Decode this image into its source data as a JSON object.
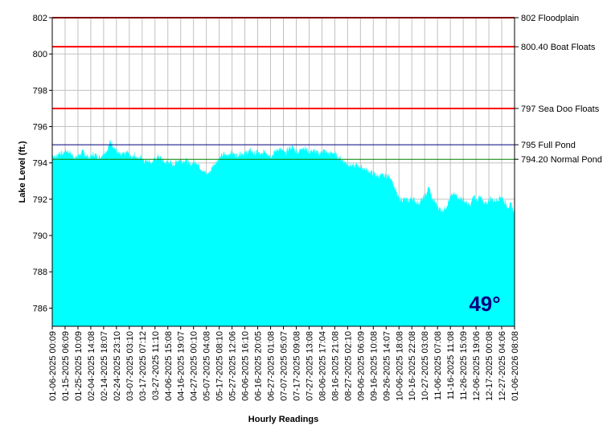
{
  "chart_data": {
    "type": "area",
    "xlabel": "Hourly Readings",
    "ylabel": "Lake Level (ft.)",
    "ylim": [
      785,
      802
    ],
    "yticks": [
      786,
      788,
      790,
      792,
      794,
      796,
      798,
      800,
      802
    ],
    "grid": true,
    "fill_color": "#00ffff",
    "x_tick_labels": [
      "01-06-2025 00:09",
      "01-15-2025 06:09",
      "01-25-2025 10:09",
      "02-04-2025 14:08",
      "02-14-2025 18:07",
      "02-24-2025 23:10",
      "03-07-2025 03:10",
      "03-17-2025 07:12",
      "03-27-2025 11:10",
      "04-06-2025 15:08",
      "04-16-2025 19:07",
      "04-27-2025 00:10",
      "05-07-2025 04:08",
      "05-17-2025 08:10",
      "05-27-2025 12:06",
      "06-06-2025 16:10",
      "06-16-2025 20:05",
      "06-27-2025 01:08",
      "07-07-2025 05:07",
      "07-17-2025 09:08",
      "07-27-2025 13:08",
      "08-06-2025 17:04",
      "08-16-2025 21:08",
      "08-27-2025 02:10",
      "09-06-2025 06:09",
      "09-16-2025 10:08",
      "09-26-2025 14:07",
      "10-06-2025 18:08",
      "10-16-2025 22:08",
      "10-27-2025 03:08",
      "11-06-2025 07:08",
      "11-16-2025 11:08",
      "11-26-2025 15:09",
      "12-06-2025 19:06",
      "12-17-2025 00:08",
      "12-27-2025 04:06",
      "01-06-2026 08:08"
    ],
    "series": [
      {
        "values": [
          794.5,
          794.3,
          794.6,
          794.5,
          794.7,
          794.6,
          794.4,
          794.3,
          794.5,
          794.6,
          794.4,
          794.3,
          794.5,
          794.4,
          794.3,
          794.6,
          794.7,
          795.2,
          794.9,
          794.6,
          794.4,
          794.5,
          794.6,
          794.3,
          794.5,
          794.2,
          794.4,
          794.1,
          794.2,
          794.0,
          794.2,
          794.4,
          794.2,
          794.0,
          794.1,
          793.9,
          794.0,
          794.2,
          794.1,
          794.2,
          793.9,
          794.0,
          794.1,
          793.8,
          793.6,
          793.4,
          793.5,
          793.9,
          794.1,
          794.3,
          794.5,
          794.4,
          794.6,
          794.5,
          794.4,
          794.6,
          794.5,
          794.6,
          794.7,
          794.5,
          794.6,
          794.4,
          794.7,
          794.5,
          794.4,
          794.6,
          794.8,
          794.7,
          794.5,
          794.8,
          794.9,
          794.7,
          794.6,
          794.9,
          794.8,
          794.6,
          794.7,
          794.6,
          794.5,
          794.7,
          794.6,
          794.5,
          794.6,
          794.4,
          794.3,
          794.1,
          794.0,
          793.9,
          793.8,
          793.9,
          793.8,
          793.7,
          793.6,
          793.5,
          793.4,
          793.3,
          793.3,
          793.3,
          793.3,
          793.2,
          792.6,
          792.1,
          792.0,
          792.0,
          791.9,
          792.1,
          791.9,
          791.8,
          792.0,
          792.2,
          792.7,
          792.0,
          791.8,
          791.5,
          791.4,
          791.6,
          792.0,
          792.3,
          792.2,
          792.1,
          792.0,
          791.8,
          791.6,
          792.2,
          791.9,
          792.3,
          791.7,
          791.8,
          792.1,
          791.9,
          792.0,
          792.2,
          791.9,
          791.6,
          791.7,
          791.3
        ]
      }
    ],
    "reference_lines": [
      {
        "value": 802,
        "label": "802 Floodplain",
        "color": "#ff0000"
      },
      {
        "value": 800.4,
        "label": "800.40 Boat Floats",
        "color": "#ff0000"
      },
      {
        "value": 797,
        "label": "797 Sea Doo Floats",
        "color": "#ff0000"
      },
      {
        "value": 795,
        "label": "795 Full Pond",
        "color": "#000080"
      },
      {
        "value": 794.2,
        "label": "794.20 Normal Pond",
        "color": "#008000"
      }
    ],
    "annotation": {
      "text": "49°",
      "color": "#000080"
    }
  }
}
